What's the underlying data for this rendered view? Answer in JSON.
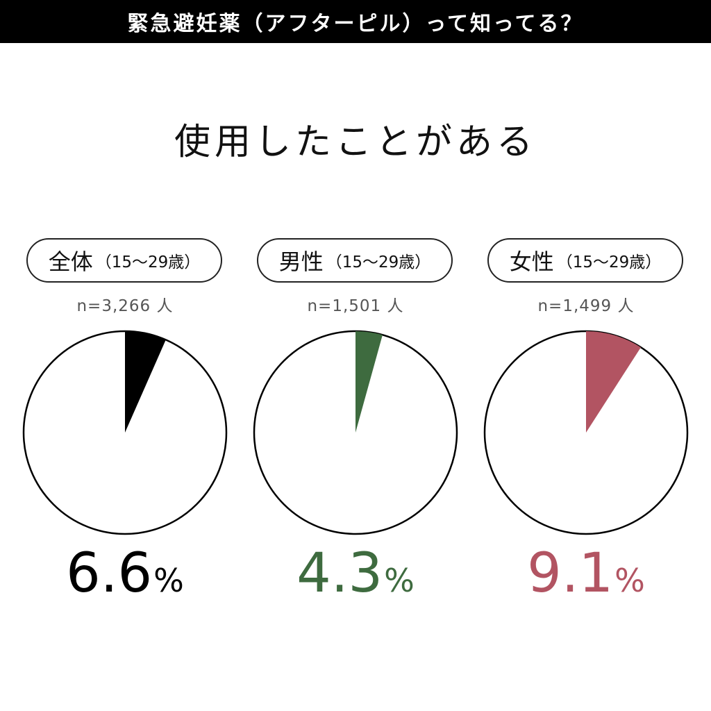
{
  "header": {
    "title": "緊急避妊薬（アフターピル）って知ってる？"
  },
  "subtitle": "使用したことがある",
  "chart_data": {
    "type": "pie",
    "charts": [
      {
        "group": "全体",
        "age": "（15〜29歳）",
        "n_label": "n=3,266 人",
        "value": 6.6,
        "value_label": "6.6",
        "unit": "%",
        "color": "#000000"
      },
      {
        "group": "男性",
        "age": "（15〜29歳）",
        "n_label": "n=1,501 人",
        "value": 4.3,
        "value_label": "4.3",
        "unit": "%",
        "color": "#3e6b3f"
      },
      {
        "group": "女性",
        "age": "（15〜29歳）",
        "n_label": "n=1,499 人",
        "value": 9.1,
        "value_label": "9.1",
        "unit": "%",
        "color": "#b25462"
      }
    ]
  }
}
